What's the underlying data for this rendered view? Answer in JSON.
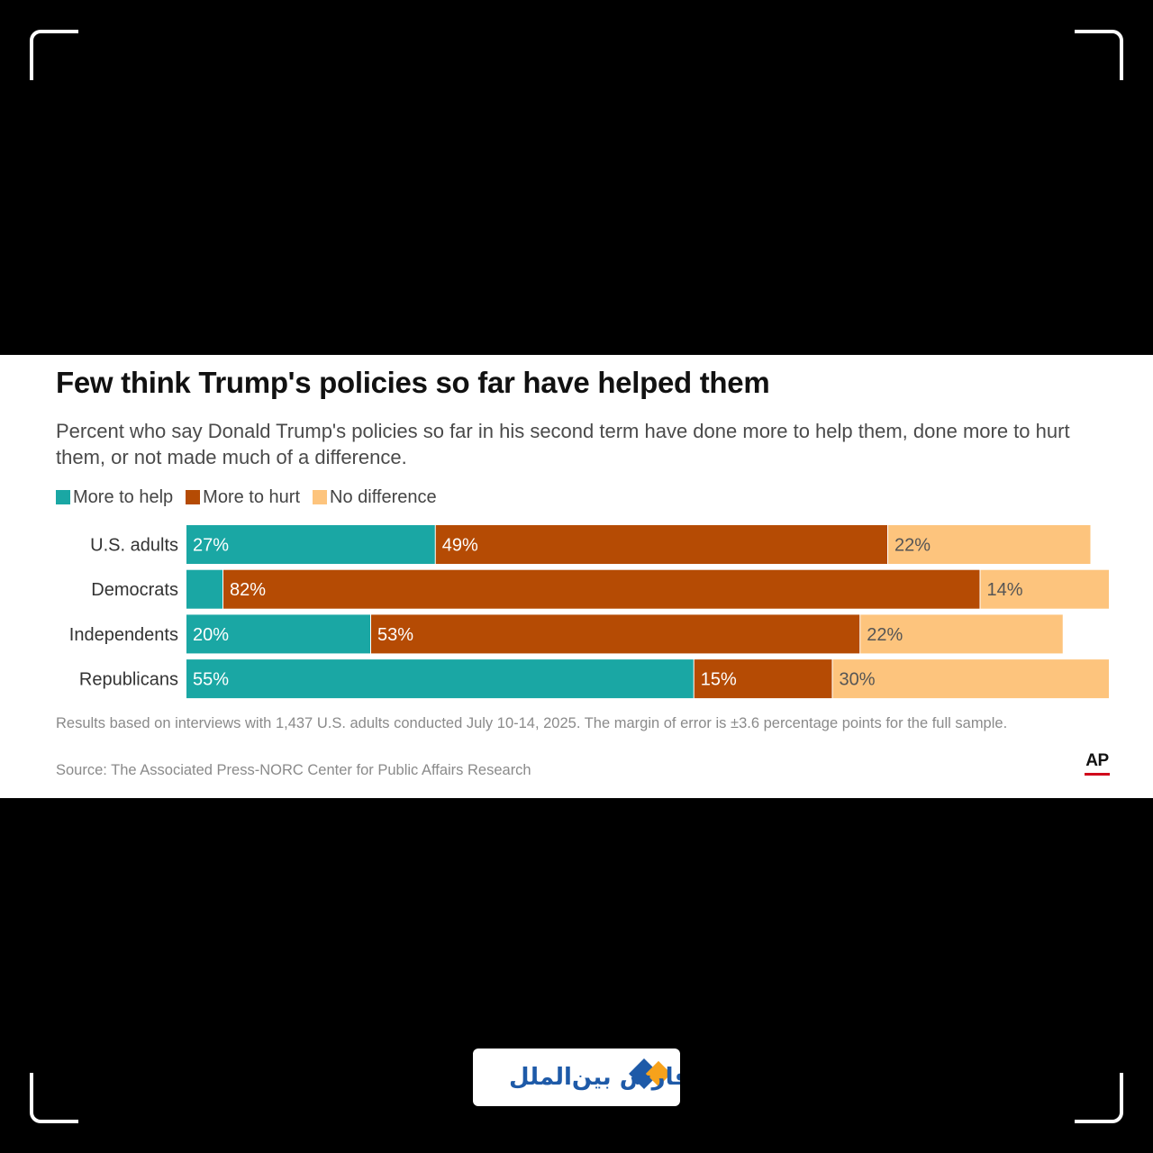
{
  "chart_data": {
    "type": "bar",
    "orientation": "horizontal-stacked",
    "title": "Few think Trump's policies so far have helped them",
    "subtitle": "Percent who say Donald Trump's policies so far in his second term have done more to help them, done more to hurt them, or not made much of a difference.",
    "categories": [
      "U.S. adults",
      "Democrats",
      "Independents",
      "Republicans"
    ],
    "series": [
      {
        "name": "More to help",
        "color": "#1aa7a4",
        "values": [
          27,
          4,
          20,
          55
        ],
        "labels": [
          "27%",
          "",
          "20%",
          "55%"
        ]
      },
      {
        "name": "More to hurt",
        "color": "#b54b04",
        "values": [
          49,
          82,
          53,
          15
        ],
        "labels": [
          "49%",
          "82%",
          "53%",
          "15%"
        ]
      },
      {
        "name": "No difference",
        "color": "#fdc47d",
        "values": [
          22,
          14,
          22,
          30
        ],
        "labels": [
          "22%",
          "14%",
          "22%",
          "30%"
        ]
      }
    ],
    "xlim": [
      0,
      100
    ],
    "legend_position": "top-left",
    "note": "Results based on interviews with 1,437 U.S. adults conducted July 10-14, 2025. The margin of error is ±3.6 percentage points for the full sample.",
    "source": "Source: The Associated Press-NORC Center for Public Affairs Research"
  },
  "branding": {
    "publisher": "AP",
    "publisher_color": "#d0021b",
    "watermark_text": "فارس بین‌الملل",
    "watermark_colors": {
      "blue": "#1e5aa8",
      "orange": "#f7a21b"
    }
  }
}
